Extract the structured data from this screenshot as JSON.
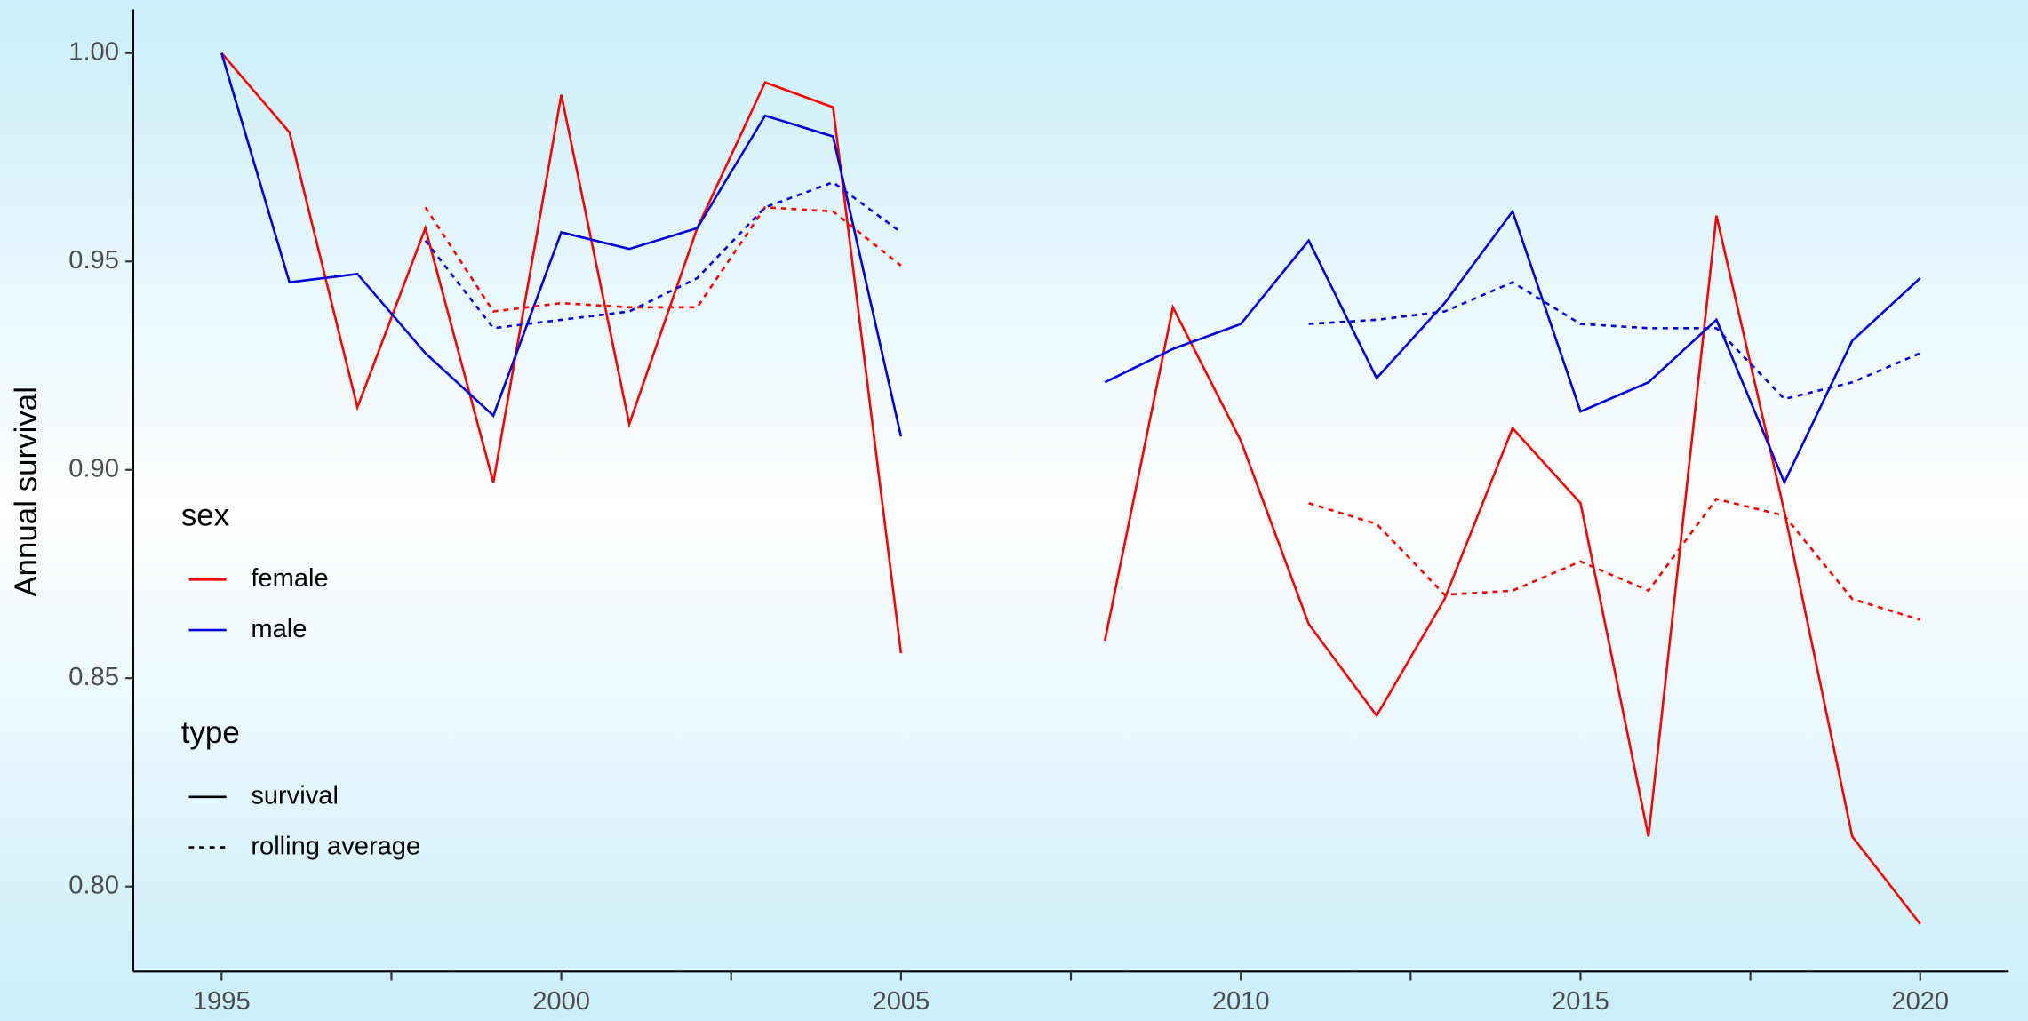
{
  "chart_data": {
    "type": "line",
    "ylabel": "Annual survival",
    "x": [
      1995,
      1996,
      1997,
      1998,
      1999,
      2000,
      2001,
      2002,
      2003,
      2004,
      2005,
      2006,
      2007,
      2008,
      2009,
      2010,
      2011,
      2012,
      2013,
      2014,
      2015,
      2016,
      2017,
      2018,
      2019,
      2020
    ],
    "xlim": [
      1993.7,
      2021.3
    ],
    "xticks": [
      1995,
      2000,
      2005,
      2010,
      2015,
      2020
    ],
    "xminor_ticks": [
      1997.5,
      2002.5,
      2007.5,
      2012.5,
      2017.5
    ],
    "ylim": [
      0.7796,
      1.0105
    ],
    "yticks": [
      {
        "value": 0.8,
        "label": "0.80"
      },
      {
        "value": 0.85,
        "label": "0.85"
      },
      {
        "value": 0.9,
        "label": "0.90"
      },
      {
        "value": 0.95,
        "label": "0.95"
      },
      {
        "value": 1.0,
        "label": "1.00"
      }
    ],
    "legends": [
      {
        "title": "sex",
        "items": [
          {
            "label": "female",
            "color": "#ff0000"
          },
          {
            "label": "male",
            "color": "#0000e0"
          }
        ]
      },
      {
        "title": "type",
        "items": [
          {
            "label": "survival",
            "dash": "none"
          },
          {
            "label": "rolling average",
            "dash": "4 4"
          }
        ]
      }
    ],
    "series": [
      {
        "sex": "female",
        "type": "survival",
        "values": [
          1.0,
          0.981,
          0.915,
          0.958,
          0.897,
          0.99,
          0.911,
          0.958,
          0.993,
          0.987,
          0.856,
          null,
          null,
          0.859,
          0.939,
          0.907,
          0.863,
          0.841,
          0.869,
          0.91,
          0.892,
          0.812,
          0.961,
          0.89,
          0.812,
          0.791
        ]
      },
      {
        "sex": "male",
        "type": "survival",
        "values": [
          1.0,
          0.945,
          0.947,
          0.928,
          0.913,
          0.957,
          0.953,
          0.958,
          0.985,
          0.98,
          0.908,
          null,
          null,
          0.921,
          0.929,
          0.935,
          0.955,
          0.922,
          0.94,
          0.962,
          0.914,
          0.921,
          0.936,
          0.897,
          0.931,
          0.946
        ]
      },
      {
        "sex": "female",
        "type": "rolling average",
        "values": [
          null,
          null,
          null,
          0.963,
          0.938,
          0.94,
          0.939,
          0.939,
          0.963,
          0.962,
          0.949,
          null,
          null,
          null,
          null,
          null,
          0.892,
          0.887,
          0.87,
          0.871,
          0.878,
          0.871,
          0.893,
          0.889,
          0.869,
          0.864
        ]
      },
      {
        "sex": "male",
        "type": "rolling average",
        "values": [
          null,
          null,
          null,
          0.955,
          0.934,
          0.936,
          0.938,
          0.946,
          0.963,
          0.969,
          0.957,
          null,
          null,
          null,
          null,
          null,
          0.935,
          0.936,
          0.938,
          0.945,
          0.935,
          0.934,
          0.934,
          0.917,
          0.921,
          0.928
        ]
      }
    ]
  }
}
